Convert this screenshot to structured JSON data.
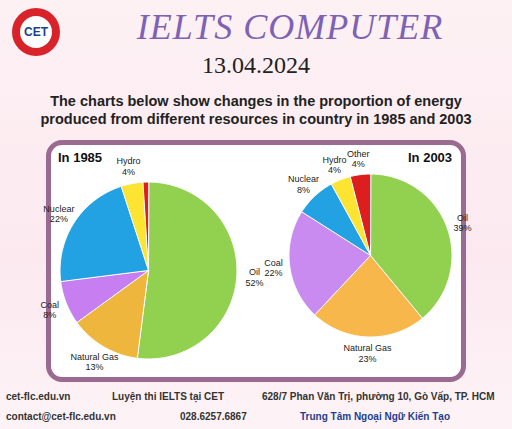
{
  "page": {
    "logo": "CET",
    "brand": "IELTS COMPUTER",
    "date": "13.04.2024",
    "subtitle": "The charts below show changes in the proportion of energy produced from different resources in country in 1985 and 2003",
    "footer": [
      [
        "cet-flc.edu.vn",
        "Luyện thi IELTS tại CET",
        "628/7 Phan Văn Trị, phường 10, Gò Vấp, TP. HCM"
      ],
      [
        "contact@cet-flc.edu.vn",
        "028.6257.6867",
        "Trung Tâm Ngoại Ngữ Kiến Tạo"
      ]
    ]
  },
  "chart_data": [
    {
      "type": "pie",
      "title": "In 1985",
      "categories": [
        "Oil",
        "Natural Gas",
        "Coal",
        "Nuclear",
        "Hydro",
        null
      ],
      "values": [
        52,
        13,
        8,
        22,
        4,
        1
      ],
      "value_labels": [
        "52%",
        "13%",
        "8%",
        "22%",
        "4%",
        null
      ],
      "colors": [
        "#92d050",
        "#eeb63d",
        "#c77ef0",
        "#22a2e2",
        "#fde432",
        "#dc1e1e"
      ],
      "data_labels": true
    },
    {
      "type": "pie",
      "title": "In 2003",
      "categories": [
        "Oil",
        "Natural Gas",
        "Coal",
        "Nuclear",
        "Hydro",
        "Other"
      ],
      "values": [
        39,
        23,
        22,
        8,
        4,
        4
      ],
      "value_labels": [
        "39%",
        "23%",
        "22%",
        "8%",
        "4%",
        "4%"
      ],
      "colors": [
        "#92d050",
        "#f8b74a",
        "#c98bef",
        "#22a2e2",
        "#fde432",
        "#dc1e1e"
      ],
      "data_labels": true
    }
  ]
}
